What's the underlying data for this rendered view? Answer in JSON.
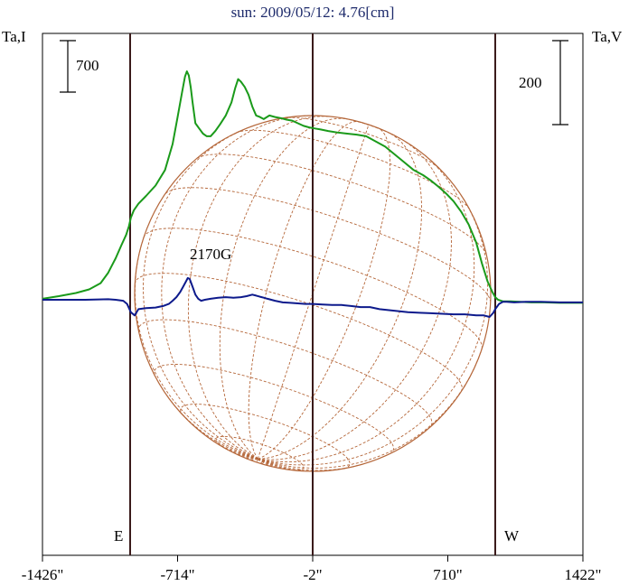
{
  "chart_data": {
    "type": "line",
    "title": "sun: 2009/05/12: 4.76[cm]",
    "y_left_label": "Ta,I",
    "y_right_label": "Ta,V",
    "scale_left_label": "700",
    "scale_right_label": "200",
    "x_tick_labels": [
      "-1426\"",
      "-714\"",
      "-2\"",
      "710\"",
      "1422\""
    ],
    "x_tick_values": [
      -1426,
      -714,
      -2,
      710,
      1422
    ],
    "xlim": [
      -1426,
      1422
    ],
    "limb_labels": {
      "east": "E",
      "west": "W"
    },
    "limb_x": [
      -964,
      960
    ],
    "center_x": -2,
    "annotation": "2170G",
    "colors": {
      "intensity": "#1a9a1a",
      "polarization": "#0d1a8c",
      "grid": "#b5673a",
      "limb": "#3a1a1a",
      "title": "#1d2a6b"
    },
    "series": [
      {
        "key": "intensity",
        "x": [
          -1426,
          -1340,
          -1250,
          -1180,
          -1120,
          -1080,
          -1040,
          -1010,
          -985,
          -970,
          -960,
          -945,
          -920,
          -880,
          -830,
          -780,
          -740,
          -715,
          -690,
          -675,
          -665,
          -655,
          -645,
          -635,
          -620,
          -600,
          -580,
          -560,
          -540,
          -515,
          -490,
          -460,
          -430,
          -410,
          -395,
          -380,
          -360,
          -340,
          -320,
          -300,
          -280,
          -260,
          -230,
          -200,
          -170,
          -140,
          -110,
          -80,
          -50,
          -20,
          10,
          40,
          80,
          130,
          180,
          230,
          280,
          330,
          380,
          430,
          480,
          530,
          580,
          620,
          660,
          700,
          740,
          780,
          820,
          860,
          890,
          920,
          945,
          960,
          975,
          1000,
          1040,
          1090,
          1150,
          1220,
          1300,
          1380,
          1422
        ],
        "y": [
          0.02,
          0.07,
          0.13,
          0.2,
          0.32,
          0.52,
          0.8,
          1.05,
          1.25,
          1.42,
          1.58,
          1.72,
          1.85,
          2.0,
          2.2,
          2.5,
          3.0,
          3.5,
          4.0,
          4.3,
          4.4,
          4.32,
          4.1,
          3.8,
          3.4,
          3.3,
          3.2,
          3.15,
          3.15,
          3.25,
          3.38,
          3.55,
          3.8,
          4.08,
          4.25,
          4.2,
          4.1,
          3.95,
          3.72,
          3.55,
          3.52,
          3.48,
          3.55,
          3.52,
          3.5,
          3.47,
          3.45,
          3.4,
          3.35,
          3.32,
          3.3,
          3.28,
          3.25,
          3.22,
          3.2,
          3.18,
          3.15,
          3.05,
          2.95,
          2.8,
          2.65,
          2.5,
          2.4,
          2.3,
          2.18,
          2.05,
          1.9,
          1.7,
          1.45,
          1.1,
          0.7,
          0.35,
          0.15,
          0.05,
          0.0,
          -0.03,
          -0.03,
          -0.04,
          -0.05,
          -0.05,
          -0.06,
          -0.06,
          -0.06
        ]
      },
      {
        "key": "polarization",
        "x": [
          -1426,
          -1300,
          -1200,
          -1080,
          -1040,
          -1000,
          -980,
          -960,
          -940,
          -920,
          -880,
          -830,
          -790,
          -760,
          -740,
          -720,
          -700,
          -685,
          -670,
          -660,
          -650,
          -635,
          -620,
          -605,
          -590,
          -570,
          -540,
          -500,
          -460,
          -420,
          -380,
          -350,
          -320,
          -300,
          -280,
          -260,
          -240,
          -200,
          -160,
          -120,
          -80,
          -40,
          0,
          50,
          100,
          150,
          200,
          250,
          300,
          350,
          400,
          450,
          500,
          560,
          620,
          680,
          740,
          800,
          860,
          900,
          930,
          950,
          960,
          980,
          1000,
          1020,
          1060,
          1120,
          1200,
          1300,
          1422
        ],
        "y": [
          0.0,
          0.0,
          0.0,
          0.01,
          0.0,
          -0.02,
          -0.08,
          -0.24,
          -0.3,
          -0.18,
          -0.16,
          -0.15,
          -0.12,
          -0.08,
          -0.02,
          0.05,
          0.15,
          0.25,
          0.35,
          0.42,
          0.4,
          0.25,
          0.1,
          0.02,
          -0.02,
          0.0,
          0.02,
          0.04,
          0.05,
          0.04,
          0.05,
          0.07,
          0.1,
          0.08,
          0.06,
          0.04,
          0.02,
          -0.02,
          -0.05,
          -0.06,
          -0.07,
          -0.08,
          -0.08,
          -0.09,
          -0.1,
          -0.1,
          -0.12,
          -0.14,
          -0.14,
          -0.18,
          -0.2,
          -0.22,
          -0.24,
          -0.25,
          -0.26,
          -0.27,
          -0.28,
          -0.28,
          -0.3,
          -0.3,
          -0.33,
          -0.25,
          -0.18,
          -0.08,
          -0.04,
          -0.04,
          -0.05,
          -0.04,
          -0.04,
          -0.05,
          -0.05
        ]
      }
    ]
  }
}
